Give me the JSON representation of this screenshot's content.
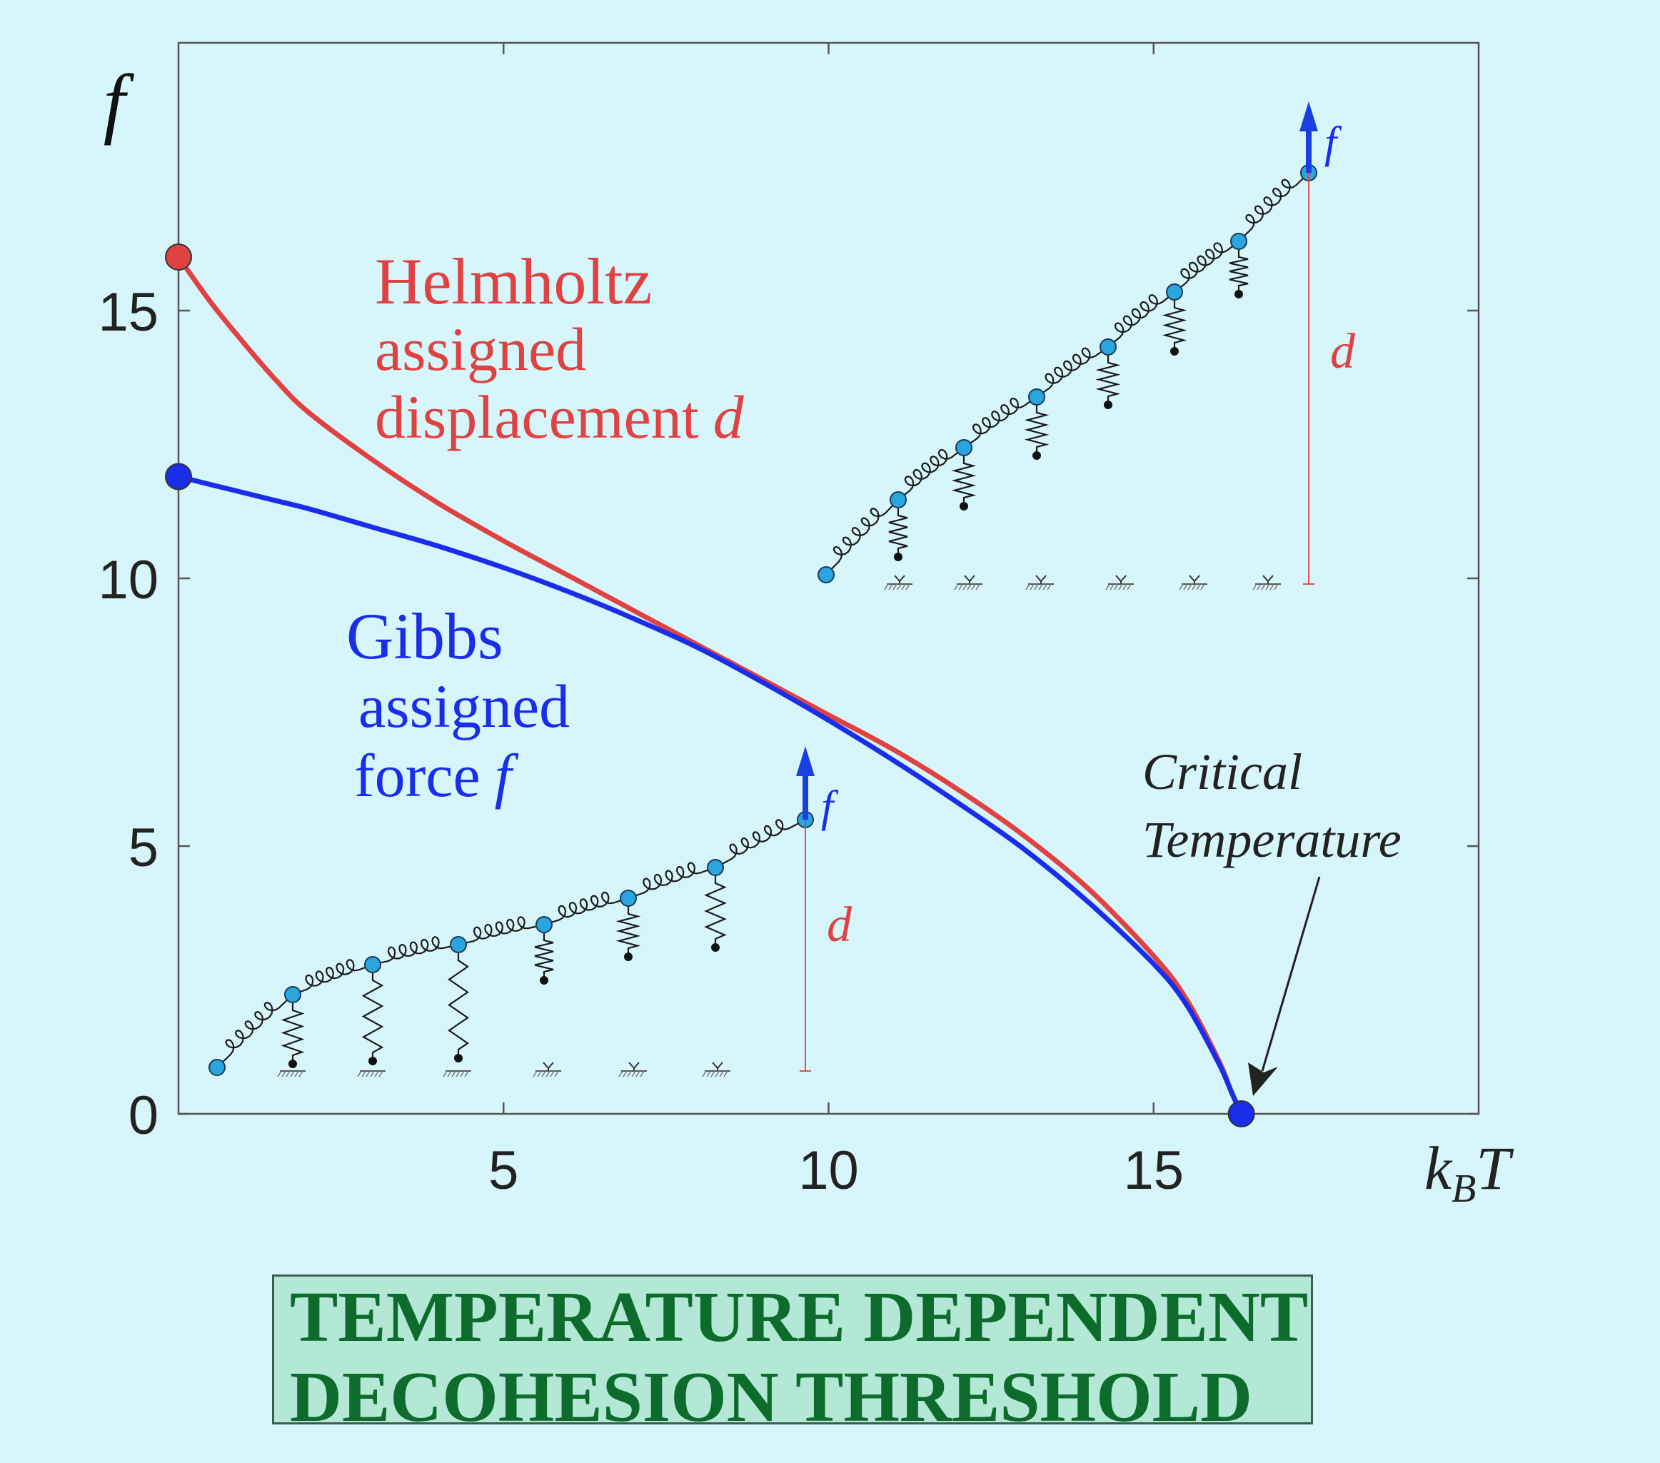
{
  "chart_data": {
    "type": "line",
    "ylabel": "f",
    "xlabel_main": "k",
    "xlabel_sub": "B",
    "xlabel_tail": "T",
    "xlim": [
      0,
      20
    ],
    "ylim": [
      0,
      20
    ],
    "x_ticks": [
      "5",
      "10",
      "15"
    ],
    "x_tick_values": [
      5,
      10,
      15
    ],
    "y_ticks": [
      "0",
      "5",
      "10",
      "15"
    ],
    "y_tick_values": [
      0,
      5,
      10,
      15
    ],
    "critical_temperature": 16.35,
    "series": [
      {
        "name": "Helmholtz",
        "color": "#e04242",
        "x": [
          0,
          0.5,
          1,
          1.5,
          2,
          3,
          4,
          5,
          6,
          7,
          8,
          9,
          10,
          11,
          12,
          13,
          14,
          15,
          15.5,
          16,
          16.2,
          16.35
        ],
        "y": [
          16.0,
          15.15,
          14.4,
          13.7,
          13.1,
          12.2,
          11.4,
          10.7,
          10.05,
          9.4,
          8.75,
          8.1,
          7.45,
          6.8,
          6.05,
          5.2,
          4.2,
          2.95,
          2.15,
          1.0,
          0.4,
          0.0
        ]
      },
      {
        "name": "Gibbs",
        "color": "#1a2eea",
        "x": [
          0,
          0.5,
          1,
          1.5,
          2,
          3,
          4,
          5,
          6,
          7,
          8,
          9,
          10,
          11,
          12,
          13,
          14,
          15,
          15.5,
          16,
          16.2,
          16.35
        ],
        "y": [
          11.9,
          11.75,
          11.6,
          11.45,
          11.3,
          10.95,
          10.6,
          10.2,
          9.75,
          9.25,
          8.7,
          8.05,
          7.35,
          6.6,
          5.8,
          4.95,
          3.95,
          2.8,
          2.05,
          0.95,
          0.4,
          0.0
        ]
      }
    ],
    "annotations": {
      "helmholtz": [
        "Helmholtz",
        "assigned",
        "displacement",
        "d"
      ],
      "gibbs": [
        "Gibbs",
        "assigned",
        "force",
        "f"
      ],
      "critical": [
        "Critical",
        "Temperature"
      ],
      "inset_force": "f",
      "inset_disp": "d"
    }
  },
  "colors": {
    "background": "#d6f6fc",
    "helmholtz": "#e04242",
    "gibbs": "#1a2eea",
    "bead": "#2aa5df",
    "title_text": "#0d6b2c",
    "title_bg": "#b2e8d5"
  },
  "title": [
    "TEMPERATURE DEPENDENT",
    "DECOHESION THRESHOLD"
  ]
}
